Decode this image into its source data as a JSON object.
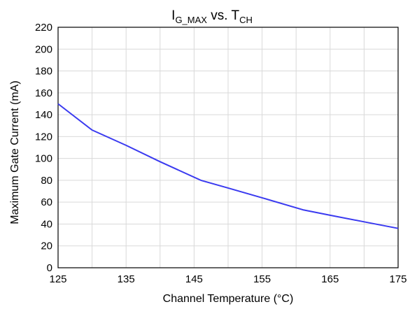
{
  "chart_data": {
    "type": "line",
    "title": {
      "main": "I",
      "main_sub": "G_MAX",
      "mid": " vs. T",
      "mid_sub": "CH"
    },
    "xlabel": "Channel Temperature (°C)",
    "ylabel": "Maximum Gate Current (mA)",
    "xlim": [
      125,
      175
    ],
    "ylim": [
      0,
      220
    ],
    "xticks": [
      125,
      135,
      145,
      155,
      165,
      175
    ],
    "yticks": [
      0,
      20,
      40,
      60,
      80,
      100,
      120,
      140,
      160,
      180,
      200,
      220
    ],
    "grid": true,
    "series": [
      {
        "color": "#3a3af0",
        "x": [
          125,
          130,
          135,
          140,
          146,
          150,
          155,
          161,
          165,
          170,
          175
        ],
        "y": [
          150,
          126,
          112,
          97,
          80,
          73,
          64,
          53,
          48,
          42,
          36
        ]
      }
    ]
  }
}
